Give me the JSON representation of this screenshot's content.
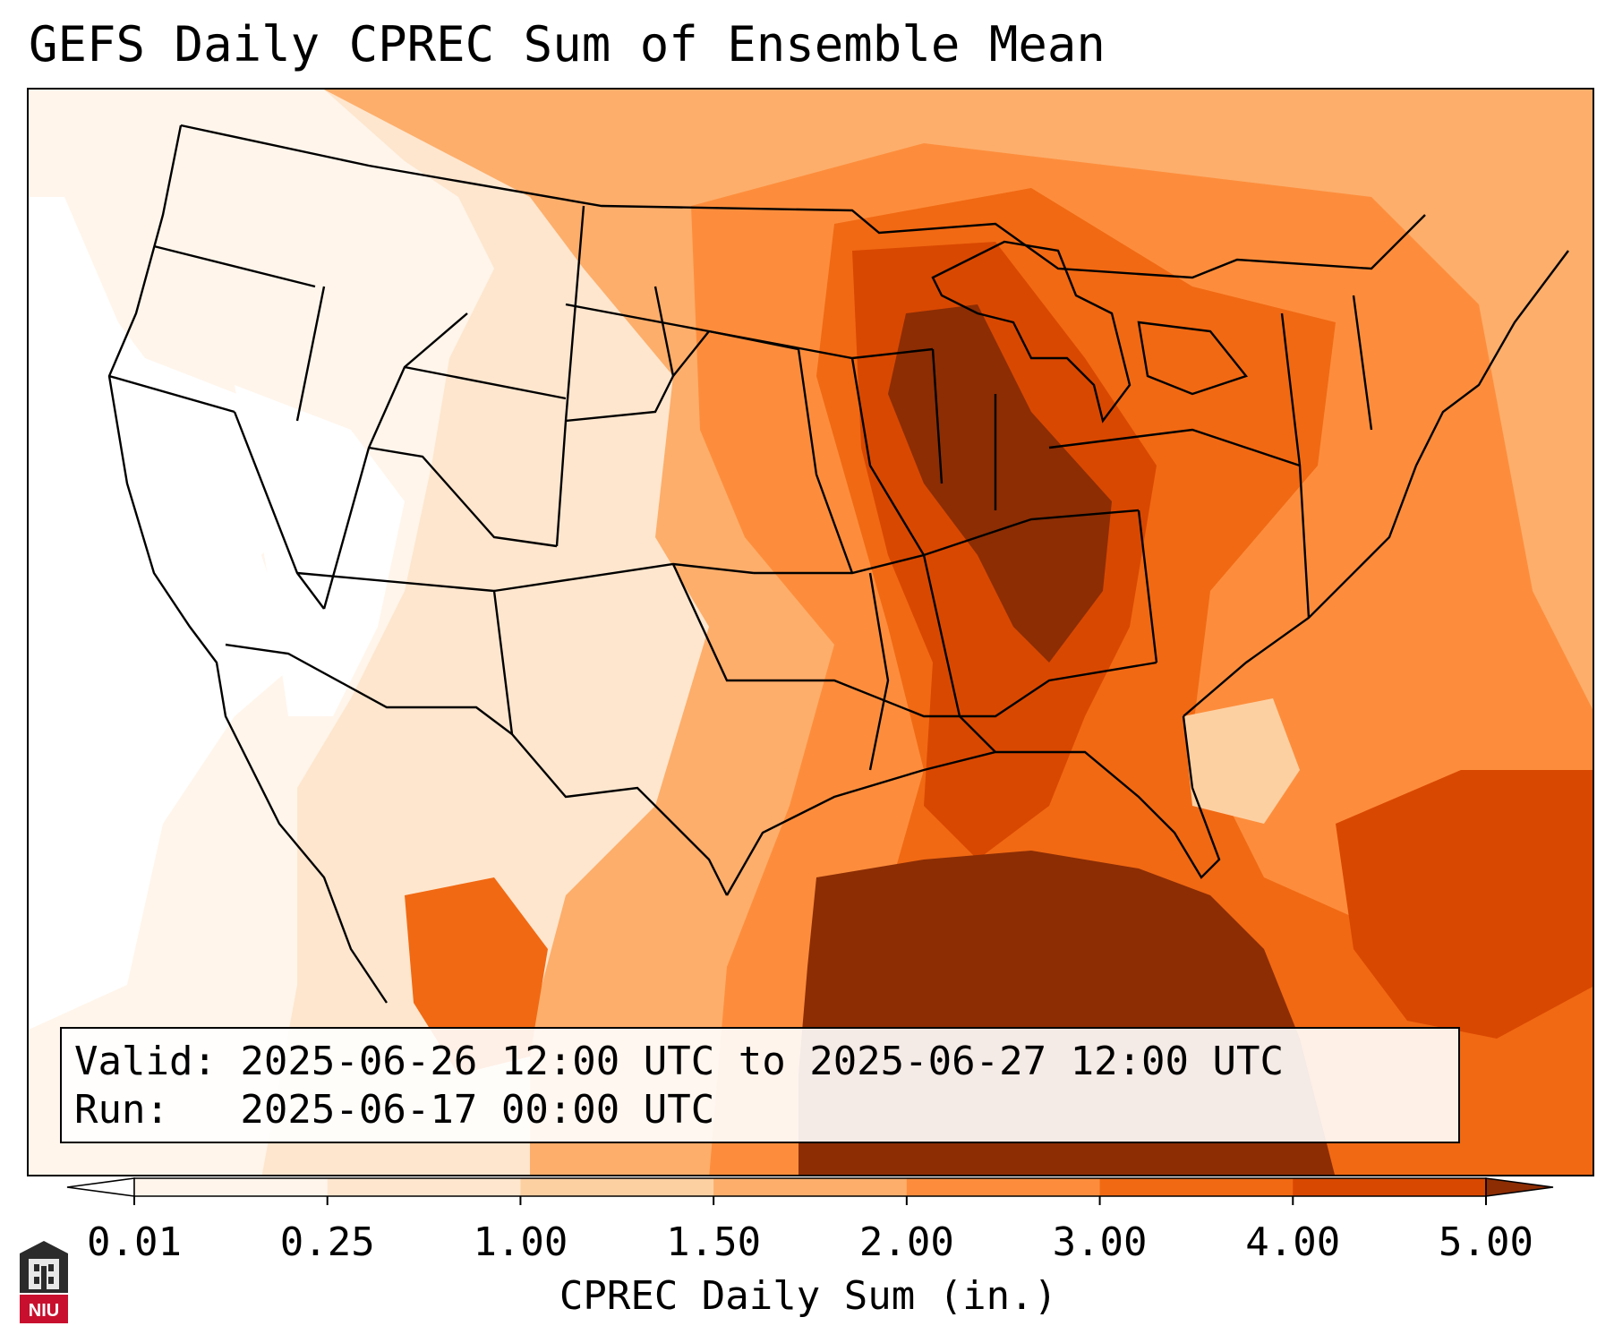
{
  "title": "GEFS Daily CPREC Sum of Ensemble Mean",
  "info": {
    "valid_line": "Valid: 2025-06-26 12:00 UTC to 2025-06-27 12:00 UTC",
    "run_line": "Run:   2025-06-17 00:00 UTC"
  },
  "colorbar": {
    "label": "CPREC Daily Sum (in.)",
    "ticks": [
      "0.01",
      "0.25",
      "1.00",
      "1.50",
      "2.00",
      "3.00",
      "4.00",
      "5.00"
    ],
    "colors": [
      "#fff5eb",
      "#fee6ce",
      "#fdd0a2",
      "#fdae6b",
      "#fd8d3c",
      "#f16913",
      "#d94801",
      "#8c2d04"
    ],
    "under_color": "#ffffff",
    "over_color": "#8c2d04"
  },
  "logo": {
    "text": "NIU",
    "color": "#c8102e"
  }
}
